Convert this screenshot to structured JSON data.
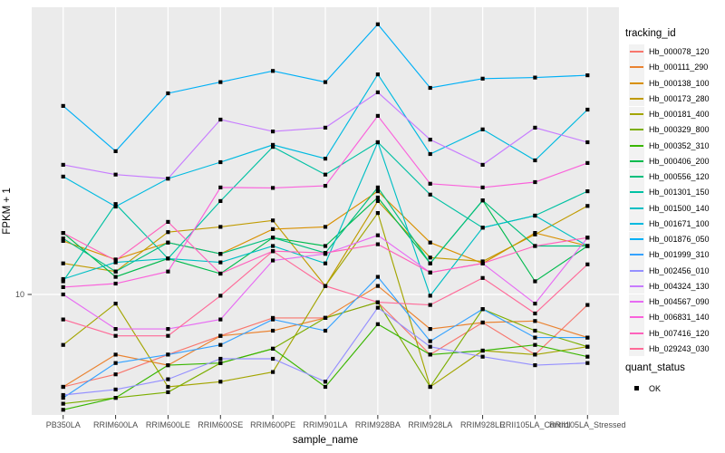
{
  "chart_data": {
    "type": "line",
    "title": "",
    "xlabel": "sample_name",
    "ylabel": "FPKM + 1",
    "y_scale": "log10",
    "y_ticks": [
      10
    ],
    "grid": "on",
    "legend_position": "right",
    "panel_bg": "#EBEBEB",
    "grid_color": "#FFFFFF",
    "tick_text_color": "#4D4D4D",
    "marker": "black-square",
    "categories": [
      "PB350LA",
      "RRIM600LA",
      "RRIM600LE",
      "RRIM600SE",
      "RRIM600PE",
      "RRIM901LA",
      "RRIM928BA",
      "RRIM928LA",
      "RRIM928LE",
      "RRII105LA_Control",
      "RRII105LA_Stressed"
    ],
    "series": [
      {
        "name": "Hb_000078_120",
        "color": "#F8766D",
        "values": [
          4.8,
          5.3,
          6.2,
          7.2,
          8.3,
          8.3,
          9.4,
          6.2,
          8.0,
          6.2,
          9.2
        ]
      },
      {
        "name": "Hb_000111_290",
        "color": "#EA8331",
        "values": [
          4.8,
          6.2,
          5.7,
          7.2,
          7.5,
          8.3,
          10.7,
          7.6,
          8.0,
          8.1,
          7.1
        ]
      },
      {
        "name": "Hb_000138_100",
        "color": "#D89000",
        "values": [
          15.3,
          13.2,
          15.1,
          13.8,
          16.8,
          17.1,
          22.7,
          15.1,
          12.8,
          16.3,
          14.7
        ]
      },
      {
        "name": "Hb_000173_280",
        "color": "#C09B00",
        "values": [
          12.8,
          12.0,
          16.4,
          17.1,
          18.0,
          10.7,
          21.0,
          13.4,
          13.0,
          16.1,
          20.2
        ]
      },
      {
        "name": "Hb_000181_400",
        "color": "#A3A500",
        "values": [
          6.7,
          9.3,
          4.8,
          5.0,
          5.4,
          10.7,
          19.1,
          4.8,
          6.4,
          6.2,
          6.6
        ]
      },
      {
        "name": "Hb_000329_800",
        "color": "#7CAE00",
        "values": [
          4.2,
          4.4,
          4.6,
          5.8,
          6.5,
          8.3,
          9.4,
          4.8,
          8.9,
          7.5,
          6.6
        ]
      },
      {
        "name": "Hb_000352_310",
        "color": "#39B600",
        "values": [
          4.0,
          4.4,
          5.7,
          5.8,
          6.5,
          4.8,
          7.9,
          6.2,
          6.4,
          6.7,
          6.1
        ]
      },
      {
        "name": "Hb_000406_200",
        "color": "#00BB4E",
        "values": [
          16.3,
          11.5,
          13.3,
          11.8,
          15.7,
          14.7,
          21.6,
          12.8,
          21.1,
          11.1,
          14.7
        ]
      },
      {
        "name": "Hb_000556_120",
        "color": "#00BF7D",
        "values": [
          15.6,
          12.0,
          15.1,
          13.8,
          15.7,
          13.9,
          23.4,
          12.8,
          21.1,
          14.7,
          14.7
        ]
      },
      {
        "name": "Hb_001301_150",
        "color": "#00C1A3",
        "values": [
          11.1,
          20.5,
          13.3,
          21.0,
          32.3,
          25.9,
          33.5,
          22.1,
          17.0,
          18.7,
          22.7
        ]
      },
      {
        "name": "Hb_001500_140",
        "color": "#00BFC4",
        "values": [
          11.3,
          12.9,
          13.3,
          12.9,
          14.7,
          12.8,
          33.5,
          9.9,
          17.0,
          18.7,
          14.7
        ]
      },
      {
        "name": "Hb_001671_100",
        "color": "#00BAE0",
        "values": [
          25.5,
          20.1,
          25.1,
          28.6,
          32.8,
          29.4,
          57.4,
          30.5,
          37.1,
          29.0,
          43.4
        ]
      },
      {
        "name": "Hb_001876_050",
        "color": "#00B0F6",
        "values": [
          44.7,
          31.2,
          49.4,
          54.0,
          59.0,
          54.0,
          85.5,
          51.6,
          55.5,
          56.0,
          57.0
        ]
      },
      {
        "name": "Hb_001999_310",
        "color": "#35A2FF",
        "values": [
          4.4,
          5.8,
          6.2,
          6.7,
          8.2,
          7.5,
          11.5,
          6.9,
          8.9,
          7.1,
          7.1
        ]
      },
      {
        "name": "Hb_002456_010",
        "color": "#9590FF",
        "values": [
          4.5,
          4.7,
          5.1,
          6.0,
          6.0,
          5.0,
          9.0,
          6.6,
          6.1,
          5.7,
          5.8
        ]
      },
      {
        "name": "Hb_004324_130",
        "color": "#C77CFF",
        "values": [
          28.0,
          25.9,
          25.1,
          40.1,
          36.5,
          37.6,
          49.8,
          34.2,
          28.0,
          37.6,
          33.5
        ]
      },
      {
        "name": "Hb_004567_090",
        "color": "#E76BF3",
        "values": [
          10.0,
          7.6,
          7.6,
          8.2,
          13.1,
          13.8,
          16.0,
          11.9,
          12.8,
          9.3,
          15.7
        ]
      },
      {
        "name": "Hb_006831_140",
        "color": "#FA62DB",
        "values": [
          10.6,
          10.9,
          12.0,
          23.4,
          23.3,
          23.7,
          41.3,
          24.1,
          23.4,
          24.4,
          28.4
        ]
      },
      {
        "name": "Hb_007416_120",
        "color": "#FF62BC",
        "values": [
          16.3,
          13.1,
          17.8,
          11.8,
          14.1,
          13.9,
          14.9,
          11.9,
          12.8,
          14.7,
          15.7
        ]
      },
      {
        "name": "Hb_029243_030",
        "color": "#FF6A98",
        "values": [
          8.2,
          7.2,
          7.2,
          9.9,
          14.1,
          10.7,
          9.4,
          9.2,
          11.4,
          8.6,
          12.7
        ]
      }
    ],
    "legend": {
      "color_title": "tracking_id",
      "shape_title": "quant_status",
      "shape_items": [
        {
          "label": "OK"
        }
      ]
    }
  }
}
